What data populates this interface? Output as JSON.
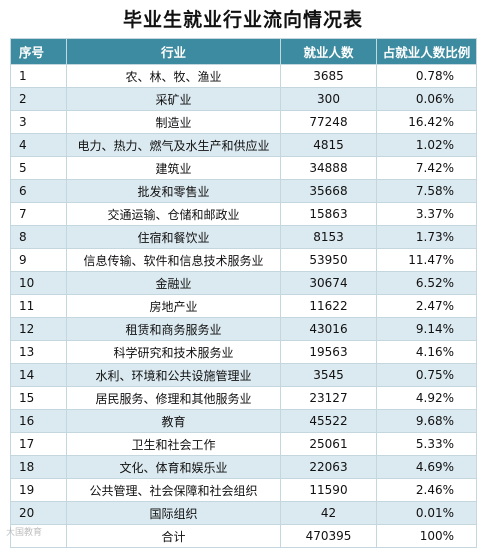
{
  "title": "毕业生就业行业流向情况表",
  "table": {
    "headers": {
      "no": "序号",
      "industry": "行业",
      "count": "就业人数",
      "ratio": "占就业人数比例"
    },
    "rows": [
      {
        "no": "1",
        "industry": "农、林、牧、渔业",
        "count": "3685",
        "ratio": "0.78%"
      },
      {
        "no": "2",
        "industry": "采矿业",
        "count": "300",
        "ratio": "0.06%"
      },
      {
        "no": "3",
        "industry": "制造业",
        "count": "77248",
        "ratio": "16.42%"
      },
      {
        "no": "4",
        "industry": "电力、热力、燃气及水生产和供应业",
        "count": "4815",
        "ratio": "1.02%"
      },
      {
        "no": "5",
        "industry": "建筑业",
        "count": "34888",
        "ratio": "7.42%"
      },
      {
        "no": "6",
        "industry": "批发和零售业",
        "count": "35668",
        "ratio": "7.58%"
      },
      {
        "no": "7",
        "industry": "交通运输、仓储和邮政业",
        "count": "15863",
        "ratio": "3.37%"
      },
      {
        "no": "8",
        "industry": "住宿和餐饮业",
        "count": "8153",
        "ratio": "1.73%"
      },
      {
        "no": "9",
        "industry": "信息传输、软件和信息技术服务业",
        "count": "53950",
        "ratio": "11.47%"
      },
      {
        "no": "10",
        "industry": "金融业",
        "count": "30674",
        "ratio": "6.52%"
      },
      {
        "no": "11",
        "industry": "房地产业",
        "count": "11622",
        "ratio": "2.47%"
      },
      {
        "no": "12",
        "industry": "租赁和商务服务业",
        "count": "43016",
        "ratio": "9.14%"
      },
      {
        "no": "13",
        "industry": "科学研究和技术服务业",
        "count": "19563",
        "ratio": "4.16%"
      },
      {
        "no": "14",
        "industry": "水利、环境和公共设施管理业",
        "count": "3545",
        "ratio": "0.75%"
      },
      {
        "no": "15",
        "industry": "居民服务、修理和其他服务业",
        "count": "23127",
        "ratio": "4.92%"
      },
      {
        "no": "16",
        "industry": "教育",
        "count": "45522",
        "ratio": "9.68%"
      },
      {
        "no": "17",
        "industry": "卫生和社会工作",
        "count": "25061",
        "ratio": "5.33%"
      },
      {
        "no": "18",
        "industry": "文化、体育和娱乐业",
        "count": "22063",
        "ratio": "4.69%"
      },
      {
        "no": "19",
        "industry": "公共管理、社会保障和社会组织",
        "count": "11590",
        "ratio": "2.46%"
      },
      {
        "no": "20",
        "industry": "国际组织",
        "count": "42",
        "ratio": "0.01%"
      }
    ],
    "total": {
      "label": "合计",
      "count": "470395",
      "ratio": "100%"
    }
  },
  "watermark": "大国教育"
}
